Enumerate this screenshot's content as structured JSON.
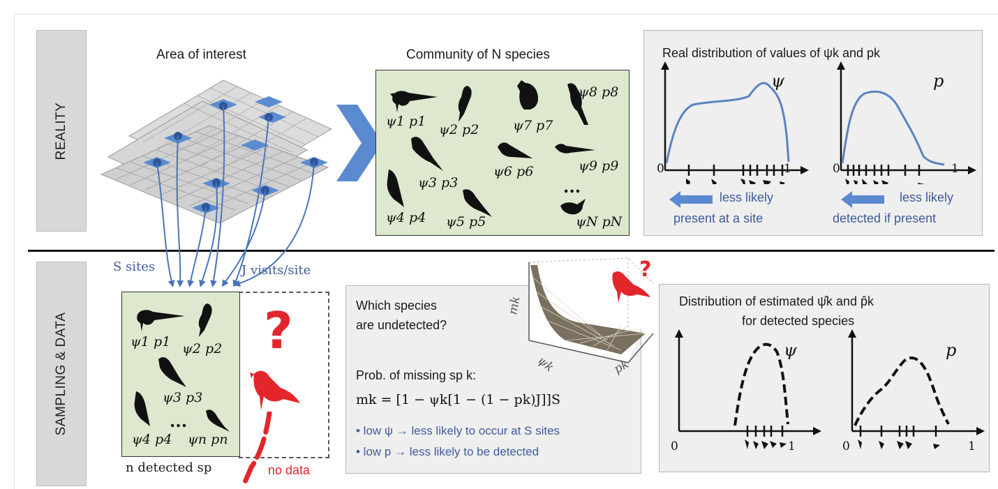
{
  "sections": {
    "reality_label": "REALITY",
    "sampling_label": "SAMPLING & DATA"
  },
  "reality": {
    "area_title": "Area of interest",
    "community_title": "Community of N species",
    "community_params": [
      "ψ1 p1",
      "ψ2 p2",
      "ψ7 p7",
      "ψ8 p8",
      "ψ6 p6",
      "ψ9 p9",
      "ψ3 p3",
      "ψ4 p4",
      "ψ5 p5",
      "ψN pN"
    ],
    "ellipsis": "...",
    "dist_title": "Real distribution of values of ψk and pk",
    "psi_label": "ψ",
    "p_label": "p",
    "axis_zero": "0",
    "axis_one": "1",
    "psi_note_1": "less likely",
    "psi_note_2": "present at a site",
    "p_note_1": "less likely",
    "p_note_2": "detected if present"
  },
  "sampling": {
    "sites_label": "S sites",
    "visits_label": "J visits/site",
    "detected_params": [
      "ψ1 p1",
      "ψ2 p2",
      "ψ3 p3",
      "ψ4 p4",
      "ψn pn"
    ],
    "ellipsis": "...",
    "detected_caption": "n detected sp",
    "no_data_caption": "no data",
    "question_mark": "?",
    "undetected_q_1": "Which species",
    "undetected_q_2": "are undetected?",
    "prob_label": "Prob. of missing sp k:",
    "formula": "mk = [1 − ψk[1 − (1 − pk)J]]S",
    "bullet_1": "• low ψ → less likely to occur at S sites",
    "bullet_2": "• low p → less likely to be detected",
    "surface_axes": [
      "mk",
      "ψk",
      "pk"
    ],
    "est_title_1": "Distribution of estimated ψ̂k and p̂k",
    "est_title_2": "for detected species",
    "psi_label": "ψ",
    "p_label": "p",
    "axis_zero": "0",
    "axis_one": "1"
  },
  "colors": {
    "accent_blue": "#4a74b9",
    "site_blue": "#5b8cd0",
    "curve_blue": "#5a82c0",
    "note_blue": "#3d5b9c",
    "red": "#e3262b",
    "green_box": "#dde8cf",
    "panel_gray": "#efefef"
  }
}
